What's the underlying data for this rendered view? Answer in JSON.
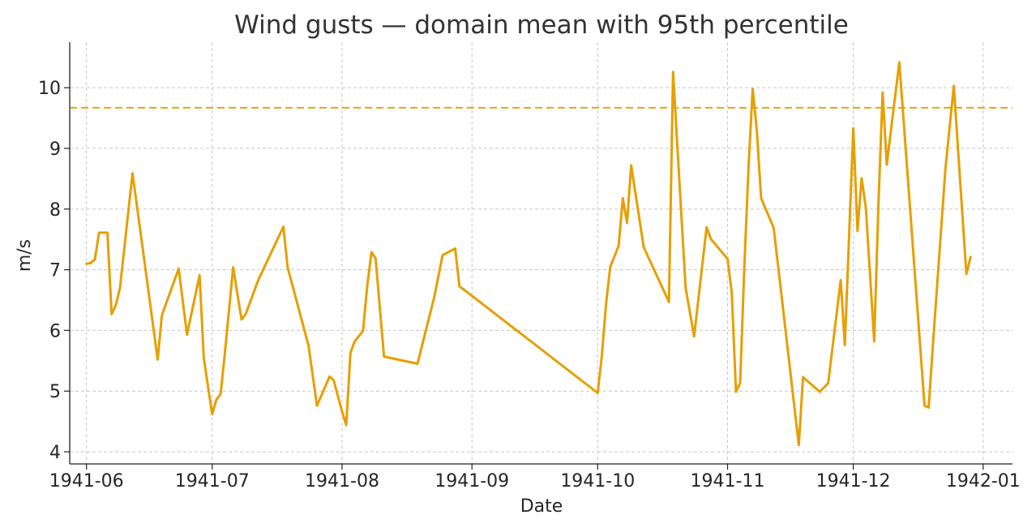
{
  "chart_data": {
    "type": "line",
    "title": "Wind gusts — domain mean with 95th percentile",
    "xlabel": "Date",
    "ylabel": "m/s",
    "xlim": [
      "1941-05-28",
      "1942-01-08"
    ],
    "ylim": [
      3.8,
      10.75
    ],
    "x_ticks": [
      "1941-06",
      "1941-07",
      "1941-08",
      "1941-09",
      "1941-10",
      "1941-11",
      "1941-12",
      "1942-01"
    ],
    "y_ticks": [
      4,
      5,
      6,
      7,
      8,
      9,
      10
    ],
    "grid": true,
    "series": [
      {
        "color": "#E69F00",
        "points": [
          [
            "1941-06-01",
            7.1
          ],
          [
            "1941-06-02",
            7.11
          ],
          [
            "1941-06-03",
            7.17
          ],
          [
            "1941-06-04",
            7.61
          ],
          [
            "1941-06-06",
            7.61
          ],
          [
            "1941-06-07",
            6.27
          ],
          [
            "1941-06-08",
            6.42
          ],
          [
            "1941-06-09",
            6.7
          ],
          [
            "1941-06-12",
            8.59
          ],
          [
            "1941-06-18",
            5.52
          ],
          [
            "1941-06-19",
            6.25
          ],
          [
            "1941-06-23",
            7.02
          ],
          [
            "1941-06-25",
            5.93
          ],
          [
            "1941-06-28",
            6.91
          ],
          [
            "1941-06-29",
            5.54
          ],
          [
            "1941-07-01",
            4.62
          ],
          [
            "1941-07-02",
            4.86
          ],
          [
            "1941-07-03",
            4.95
          ],
          [
            "1941-07-04",
            5.6
          ],
          [
            "1941-07-06",
            7.04
          ],
          [
            "1941-07-08",
            6.18
          ],
          [
            "1941-07-09",
            6.27
          ],
          [
            "1941-07-12",
            6.83
          ],
          [
            "1941-07-18",
            7.71
          ],
          [
            "1941-07-19",
            7.04
          ],
          [
            "1941-07-24",
            5.75
          ],
          [
            "1941-07-26",
            4.76
          ],
          [
            "1941-07-29",
            5.24
          ],
          [
            "1941-07-30",
            5.18
          ],
          [
            "1941-08-01",
            4.66
          ],
          [
            "1941-08-02",
            4.44
          ],
          [
            "1941-08-03",
            5.63
          ],
          [
            "1941-08-04",
            5.82
          ],
          [
            "1941-08-06",
            5.99
          ],
          [
            "1941-08-07",
            6.73
          ],
          [
            "1941-08-08",
            7.29
          ],
          [
            "1941-08-09",
            7.19
          ],
          [
            "1941-08-11",
            5.57
          ],
          [
            "1941-08-19",
            5.45
          ],
          [
            "1941-08-23",
            6.55
          ],
          [
            "1941-08-25",
            7.24
          ],
          [
            "1941-08-28",
            7.35
          ],
          [
            "1941-08-29",
            6.73
          ],
          [
            "1941-10-01",
            4.97
          ],
          [
            "1941-10-02",
            5.58
          ],
          [
            "1941-10-03",
            6.43
          ],
          [
            "1941-10-04",
            7.05
          ],
          [
            "1941-10-06",
            7.39
          ],
          [
            "1941-10-07",
            8.18
          ],
          [
            "1941-10-08",
            7.77
          ],
          [
            "1941-10-09",
            8.72
          ],
          [
            "1941-10-12",
            7.37
          ],
          [
            "1941-10-18",
            6.47
          ],
          [
            "1941-10-19",
            10.26
          ],
          [
            "1941-10-20",
            9.05
          ],
          [
            "1941-10-22",
            6.7
          ],
          [
            "1941-10-24",
            5.9
          ],
          [
            "1941-10-27",
            7.7
          ],
          [
            "1941-10-28",
            7.51
          ],
          [
            "1941-11-01",
            7.18
          ],
          [
            "1941-11-02",
            6.62
          ],
          [
            "1941-11-03",
            4.99
          ],
          [
            "1941-11-04",
            5.13
          ],
          [
            "1941-11-05",
            7.04
          ],
          [
            "1941-11-06",
            8.7
          ],
          [
            "1941-11-07",
            9.98
          ],
          [
            "1941-11-08",
            9.28
          ],
          [
            "1941-11-09",
            8.18
          ],
          [
            "1941-11-12",
            7.69
          ],
          [
            "1941-11-18",
            4.11
          ],
          [
            "1941-11-19",
            5.23
          ],
          [
            "1941-11-23",
            4.99
          ],
          [
            "1941-11-25",
            5.13
          ],
          [
            "1941-11-28",
            6.83
          ],
          [
            "1941-11-29",
            5.76
          ],
          [
            "1941-12-01",
            9.33
          ],
          [
            "1941-12-02",
            7.64
          ],
          [
            "1941-12-03",
            8.51
          ],
          [
            "1941-12-04",
            8.02
          ],
          [
            "1941-12-06",
            5.82
          ],
          [
            "1941-12-07",
            8.07
          ],
          [
            "1941-12-08",
            9.92
          ],
          [
            "1941-12-09",
            8.73
          ],
          [
            "1941-12-12",
            10.42
          ],
          [
            "1941-12-18",
            4.76
          ],
          [
            "1941-12-19",
            4.73
          ],
          [
            "1941-12-20",
            5.76
          ],
          [
            "1941-12-23",
            8.67
          ],
          [
            "1941-12-25",
            10.03
          ],
          [
            "1941-12-28",
            6.93
          ],
          [
            "1941-12-29",
            7.21
          ]
        ]
      }
    ],
    "reference_line": {
      "y": 9.67,
      "color": "#E69F00",
      "style": "dashed"
    }
  }
}
